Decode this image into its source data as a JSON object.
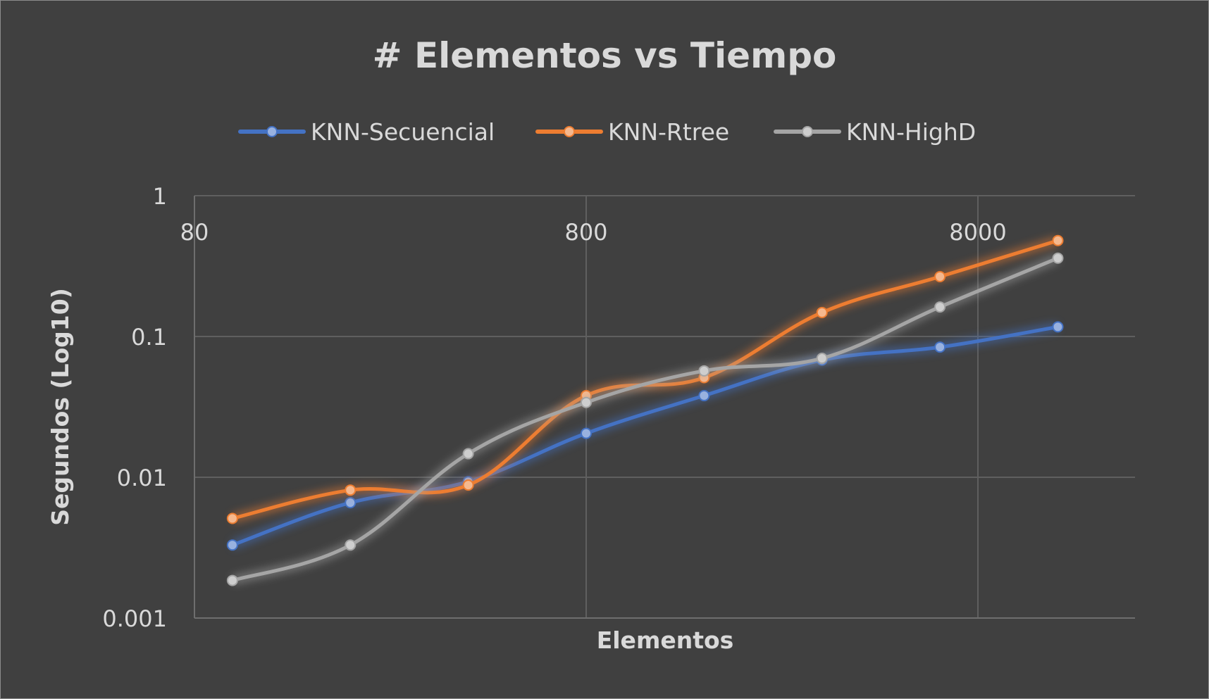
{
  "chart_data": {
    "type": "line",
    "title": "# Elementos vs Tiempo",
    "xlabel": "Elementos",
    "ylabel": "Segundos (Log10)",
    "x_scale": "log",
    "y_scale": "log",
    "xlim": [
      80,
      20000
    ],
    "ylim": [
      0.001,
      1
    ],
    "x_ticks": [
      {
        "value": 80,
        "label": "80"
      },
      {
        "value": 800,
        "label": "800"
      },
      {
        "value": 8000,
        "label": "8000"
      }
    ],
    "y_ticks": [
      {
        "value": 1,
        "label": "1"
      },
      {
        "value": 0.1,
        "label": "0.1"
      },
      {
        "value": 0.01,
        "label": "0.01"
      },
      {
        "value": 0.001,
        "label": "0.001"
      }
    ],
    "grid": true,
    "smooth": true,
    "legend_position": "top",
    "x": [
      100,
      200,
      400,
      800,
      1600,
      3200,
      6400,
      12800
    ],
    "series": [
      {
        "name": "KNN-Secuencial",
        "color": "#4472c4",
        "values": [
          0.0033,
          0.0066,
          0.0093,
          0.0205,
          0.038,
          0.068,
          0.084,
          0.117
        ]
      },
      {
        "name": "KNN-Rtree",
        "color": "#ed7d31",
        "values": [
          0.0051,
          0.0081,
          0.0088,
          0.038,
          0.051,
          0.148,
          0.266,
          0.48
        ]
      },
      {
        "name": "KNN-HighD",
        "color": "#a5a5a5",
        "values": [
          0.00185,
          0.0033,
          0.0147,
          0.034,
          0.057,
          0.07,
          0.162,
          0.36
        ]
      }
    ]
  }
}
